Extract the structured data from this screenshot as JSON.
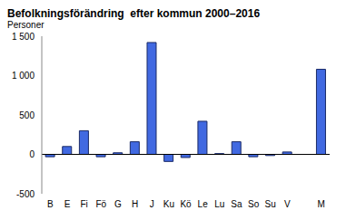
{
  "chart_data": {
    "type": "bar",
    "title": "Befolkningsförändring  efter kommun 2000–2016",
    "y_label": "Personer",
    "categories": [
      "B",
      "E",
      "Fi",
      "Fö",
      "G",
      "H",
      "J",
      "Ku",
      "Kö",
      "Le",
      "Lu",
      "Sa",
      "So",
      "Su",
      "V",
      null,
      "M"
    ],
    "values": [
      -30,
      100,
      300,
      -30,
      20,
      160,
      1420,
      -90,
      -40,
      420,
      10,
      160,
      -30,
      -15,
      30,
      null,
      1080
    ],
    "color": "#4169e1",
    "ylim": [
      -500,
      1500
    ],
    "yticks": [
      -500,
      0,
      500,
      {
        "value": 1000,
        "label": "1 000"
      },
      {
        "value": 1500,
        "label": "1 500"
      }
    ],
    "grid": false
  }
}
